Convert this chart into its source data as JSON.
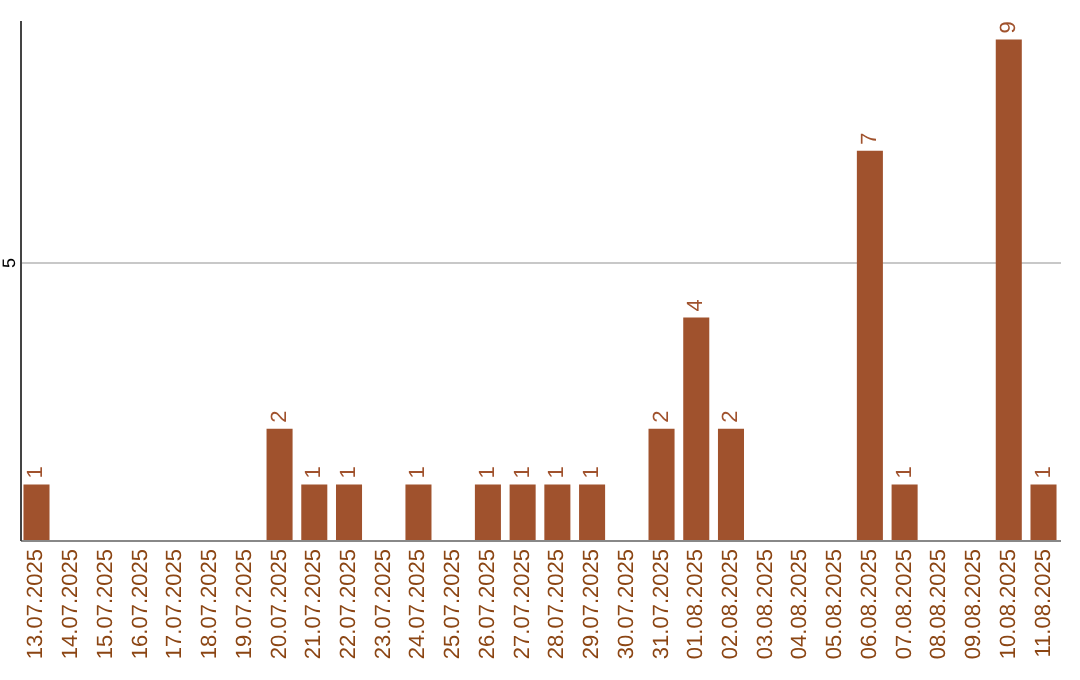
{
  "chart_data": {
    "type": "bar",
    "categories": [
      "13.07.2025",
      "14.07.2025",
      "15.07.2025",
      "16.07.2025",
      "17.07.2025",
      "18.07.2025",
      "19.07.2025",
      "20.07.2025",
      "21.07.2025",
      "22.07.2025",
      "23.07.2025",
      "24.07.2025",
      "25.07.2025",
      "26.07.2025",
      "27.07.2025",
      "28.07.2025",
      "29.07.2025",
      "30.07.2025",
      "31.07.2025",
      "01.08.2025",
      "02.08.2025",
      "03.08.2025",
      "04.08.2025",
      "05.08.2025",
      "06.08.2025",
      "07.08.2025",
      "08.08.2025",
      "09.08.2025",
      "10.08.2025",
      "11.08.2025"
    ],
    "values": [
      1,
      0,
      0,
      0,
      0,
      0,
      0,
      2,
      1,
      1,
      0,
      1,
      0,
      1,
      1,
      1,
      1,
      0,
      2,
      4,
      2,
      0,
      0,
      0,
      7,
      1,
      0,
      0,
      9,
      1
    ],
    "value_labels": [
      "1",
      null,
      null,
      null,
      null,
      null,
      null,
      "2",
      "1",
      "1",
      null,
      "1",
      null,
      "1",
      "1",
      "1",
      "1",
      null,
      "2",
      "4",
      "2",
      null,
      null,
      null,
      "7",
      "1",
      null,
      null,
      "9",
      "1"
    ],
    "color": "#a0522d",
    "ylim": [
      0,
      9.35
    ],
    "yticks": [
      5
    ],
    "grid": "y"
  }
}
